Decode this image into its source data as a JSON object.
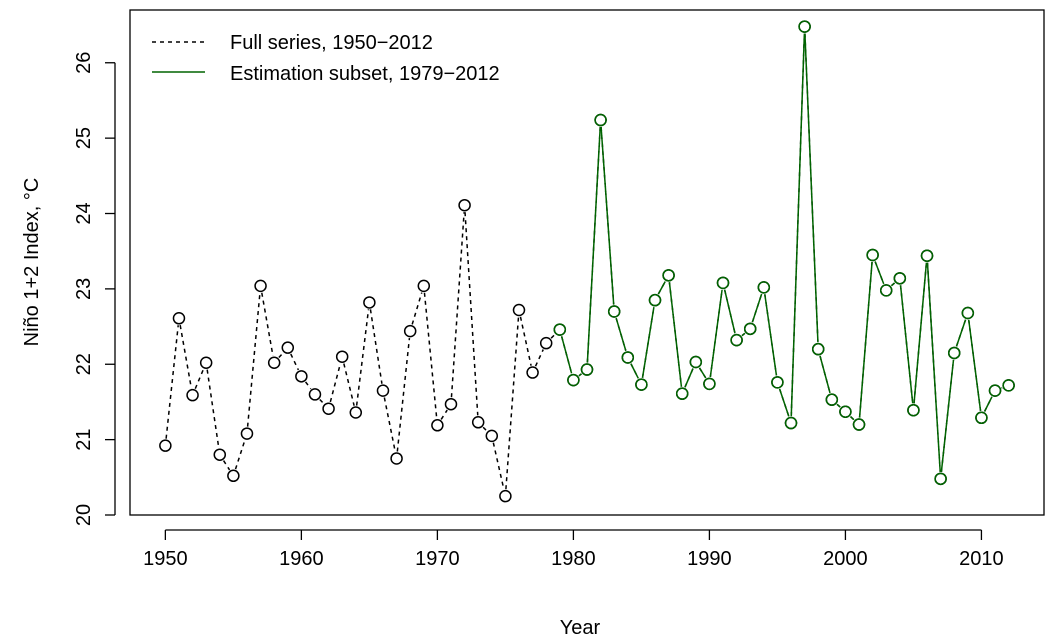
{
  "chart_data": {
    "type": "line",
    "xlabel": "Year",
    "ylabel": "Niño 1+2 Index, °C",
    "xlim": [
      1947.4,
      2014.6
    ],
    "ylim": [
      20.0,
      26.7
    ],
    "x_ticks": [
      1950,
      1960,
      1970,
      1980,
      1990,
      2000,
      2010
    ],
    "y_ticks": [
      20,
      21,
      22,
      23,
      24,
      25,
      26
    ],
    "grid": false,
    "legend_position": "top-left",
    "series": [
      {
        "name": "Full series, 1950−2012",
        "style": "dashed",
        "color": "#000000",
        "x": [
          1950,
          1951,
          1952,
          1953,
          1954,
          1955,
          1956,
          1957,
          1958,
          1959,
          1960,
          1961,
          1962,
          1963,
          1964,
          1965,
          1966,
          1967,
          1968,
          1969,
          1970,
          1971,
          1972,
          1973,
          1974,
          1975,
          1976,
          1977,
          1978,
          1979,
          1980,
          1981,
          1982,
          1983,
          1984,
          1985,
          1986,
          1987,
          1988,
          1989,
          1990,
          1991,
          1992,
          1993,
          1994,
          1995,
          1996,
          1997,
          1998,
          1999,
          2000,
          2001,
          2002,
          2003,
          2004,
          2005,
          2006,
          2007,
          2008,
          2009,
          2010,
          2011,
          2012
        ],
        "values": [
          20.92,
          22.61,
          21.59,
          22.02,
          20.8,
          20.52,
          21.08,
          23.04,
          22.02,
          22.22,
          21.84,
          21.6,
          21.41,
          22.1,
          21.36,
          22.82,
          21.65,
          20.75,
          22.44,
          23.04,
          21.19,
          21.47,
          24.11,
          21.23,
          21.05,
          20.25,
          22.72,
          21.89,
          22.28,
          22.46,
          21.79,
          21.93,
          25.24,
          22.7,
          22.09,
          21.73,
          22.85,
          23.18,
          21.61,
          22.03,
          21.74,
          23.08,
          22.32,
          22.47,
          23.02,
          21.76,
          21.22,
          26.48,
          22.2,
          21.53,
          21.37,
          21.2,
          23.45,
          22.98,
          23.14,
          21.39,
          23.44,
          20.48,
          22.15,
          22.68,
          21.29,
          21.65,
          21.72
        ]
      },
      {
        "name": "Estimation subset, 1979−2012",
        "style": "solid",
        "color": "#006400",
        "x": [
          1979,
          1980,
          1981,
          1982,
          1983,
          1984,
          1985,
          1986,
          1987,
          1988,
          1989,
          1990,
          1991,
          1992,
          1993,
          1994,
          1995,
          1996,
          1997,
          1998,
          1999,
          2000,
          2001,
          2002,
          2003,
          2004,
          2005,
          2006,
          2007,
          2008,
          2009,
          2010,
          2011,
          2012
        ],
        "values": [
          22.46,
          21.79,
          21.93,
          25.24,
          22.7,
          22.09,
          21.73,
          22.85,
          23.18,
          21.61,
          22.03,
          21.74,
          23.08,
          22.32,
          22.47,
          23.02,
          21.76,
          21.22,
          26.48,
          22.2,
          21.53,
          21.37,
          21.2,
          23.45,
          22.98,
          23.14,
          21.39,
          23.44,
          20.48,
          22.15,
          22.68,
          21.29,
          21.65,
          21.72
        ]
      }
    ]
  }
}
